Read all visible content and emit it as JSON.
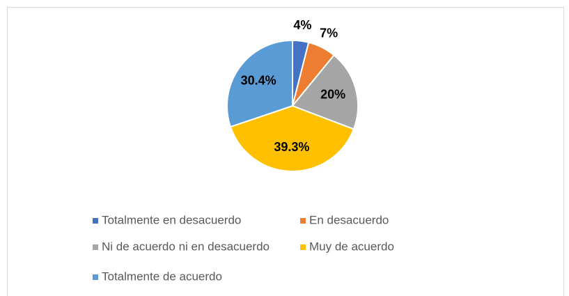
{
  "chart_data": {
    "type": "pie",
    "categories": [
      "Totalmente en desacuerdo",
      "En desacuerdo",
      "Ni de acuerdo ni en desacuerdo",
      "Muy de acuerdo",
      "Totalmente de acuerdo"
    ],
    "values": [
      4,
      7,
      20,
      39.3,
      30.4
    ],
    "value_labels": [
      "4%",
      "7%",
      "20%",
      "39.3%",
      "30.4%"
    ],
    "colors": [
      "#4472c4",
      "#ed7d31",
      "#a5a5a5",
      "#ffc000",
      "#5b9bd5"
    ],
    "legend": "bottom"
  }
}
